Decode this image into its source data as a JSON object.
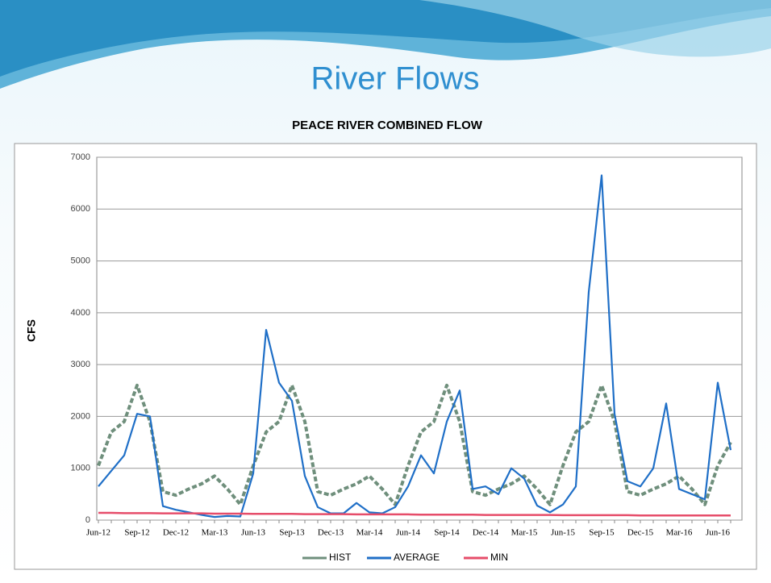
{
  "slide_title": "River Flows",
  "chart_data": {
    "type": "line",
    "title": "PEACE  RIVER COMBINED FLOW",
    "y_label": "CFS",
    "categories": [
      "Jun-12",
      null,
      null,
      "Sep-12",
      null,
      null,
      "Dec-12",
      null,
      null,
      "Mar-13",
      null,
      null,
      "Jun-13",
      null,
      null,
      "Sep-13",
      null,
      null,
      "Dec-13",
      null,
      null,
      "Mar-14",
      null,
      null,
      "Jun-14",
      null,
      null,
      "Sep-14",
      null,
      null,
      "Dec-14",
      null,
      null,
      "Mar-15",
      null,
      null,
      "Jun-15",
      null,
      null,
      "Sep-15",
      null,
      null,
      "Dec-15",
      null,
      null,
      "Mar-16",
      null,
      null,
      "Jun-16",
      null
    ],
    "series": [
      {
        "name": "HIST",
        "color": "#6f8f7c",
        "values": [
          1050,
          1700,
          1900,
          2600,
          1900,
          550,
          480,
          600,
          700,
          850,
          600,
          300,
          1050,
          1700,
          1900,
          2600,
          1900,
          550,
          480,
          600,
          700,
          850,
          600,
          300,
          1050,
          1700,
          1900,
          2600,
          1900,
          550,
          480,
          600,
          700,
          850,
          600,
          300,
          1050,
          1700,
          1900,
          2600,
          1900,
          550,
          480,
          600,
          700,
          850,
          600,
          300,
          1050,
          1500
        ]
      },
      {
        "name": "AVERAGE",
        "color": "#1f6fc7",
        "values": [
          650,
          950,
          1250,
          2050,
          2000,
          270,
          200,
          150,
          100,
          60,
          80,
          70,
          900,
          3670,
          2650,
          2300,
          850,
          250,
          130,
          130,
          330,
          150,
          130,
          250,
          650,
          1250,
          900,
          1900,
          2500,
          600,
          650,
          500,
          1000,
          800,
          280,
          150,
          300,
          650,
          4400,
          6650,
          2050,
          750,
          650,
          1000,
          2250,
          600,
          500,
          400,
          2650,
          1350
        ]
      },
      {
        "name": "MIN",
        "color": "#e64d6a",
        "values": [
          140,
          140,
          135,
          135,
          135,
          130,
          130,
          130,
          130,
          125,
          125,
          125,
          120,
          120,
          120,
          120,
          115,
          115,
          115,
          115,
          110,
          110,
          110,
          110,
          110,
          105,
          105,
          105,
          105,
          105,
          100,
          100,
          100,
          100,
          100,
          100,
          95,
          95,
          95,
          95,
          95,
          95,
          90,
          90,
          90,
          90,
          90,
          90,
          90,
          90
        ]
      }
    ],
    "ylim": [
      0,
      7000
    ],
    "yticks": [
      0,
      1000,
      2000,
      3000,
      4000,
      5000,
      6000,
      7000
    ],
    "grid": true,
    "legend": "bottom"
  }
}
